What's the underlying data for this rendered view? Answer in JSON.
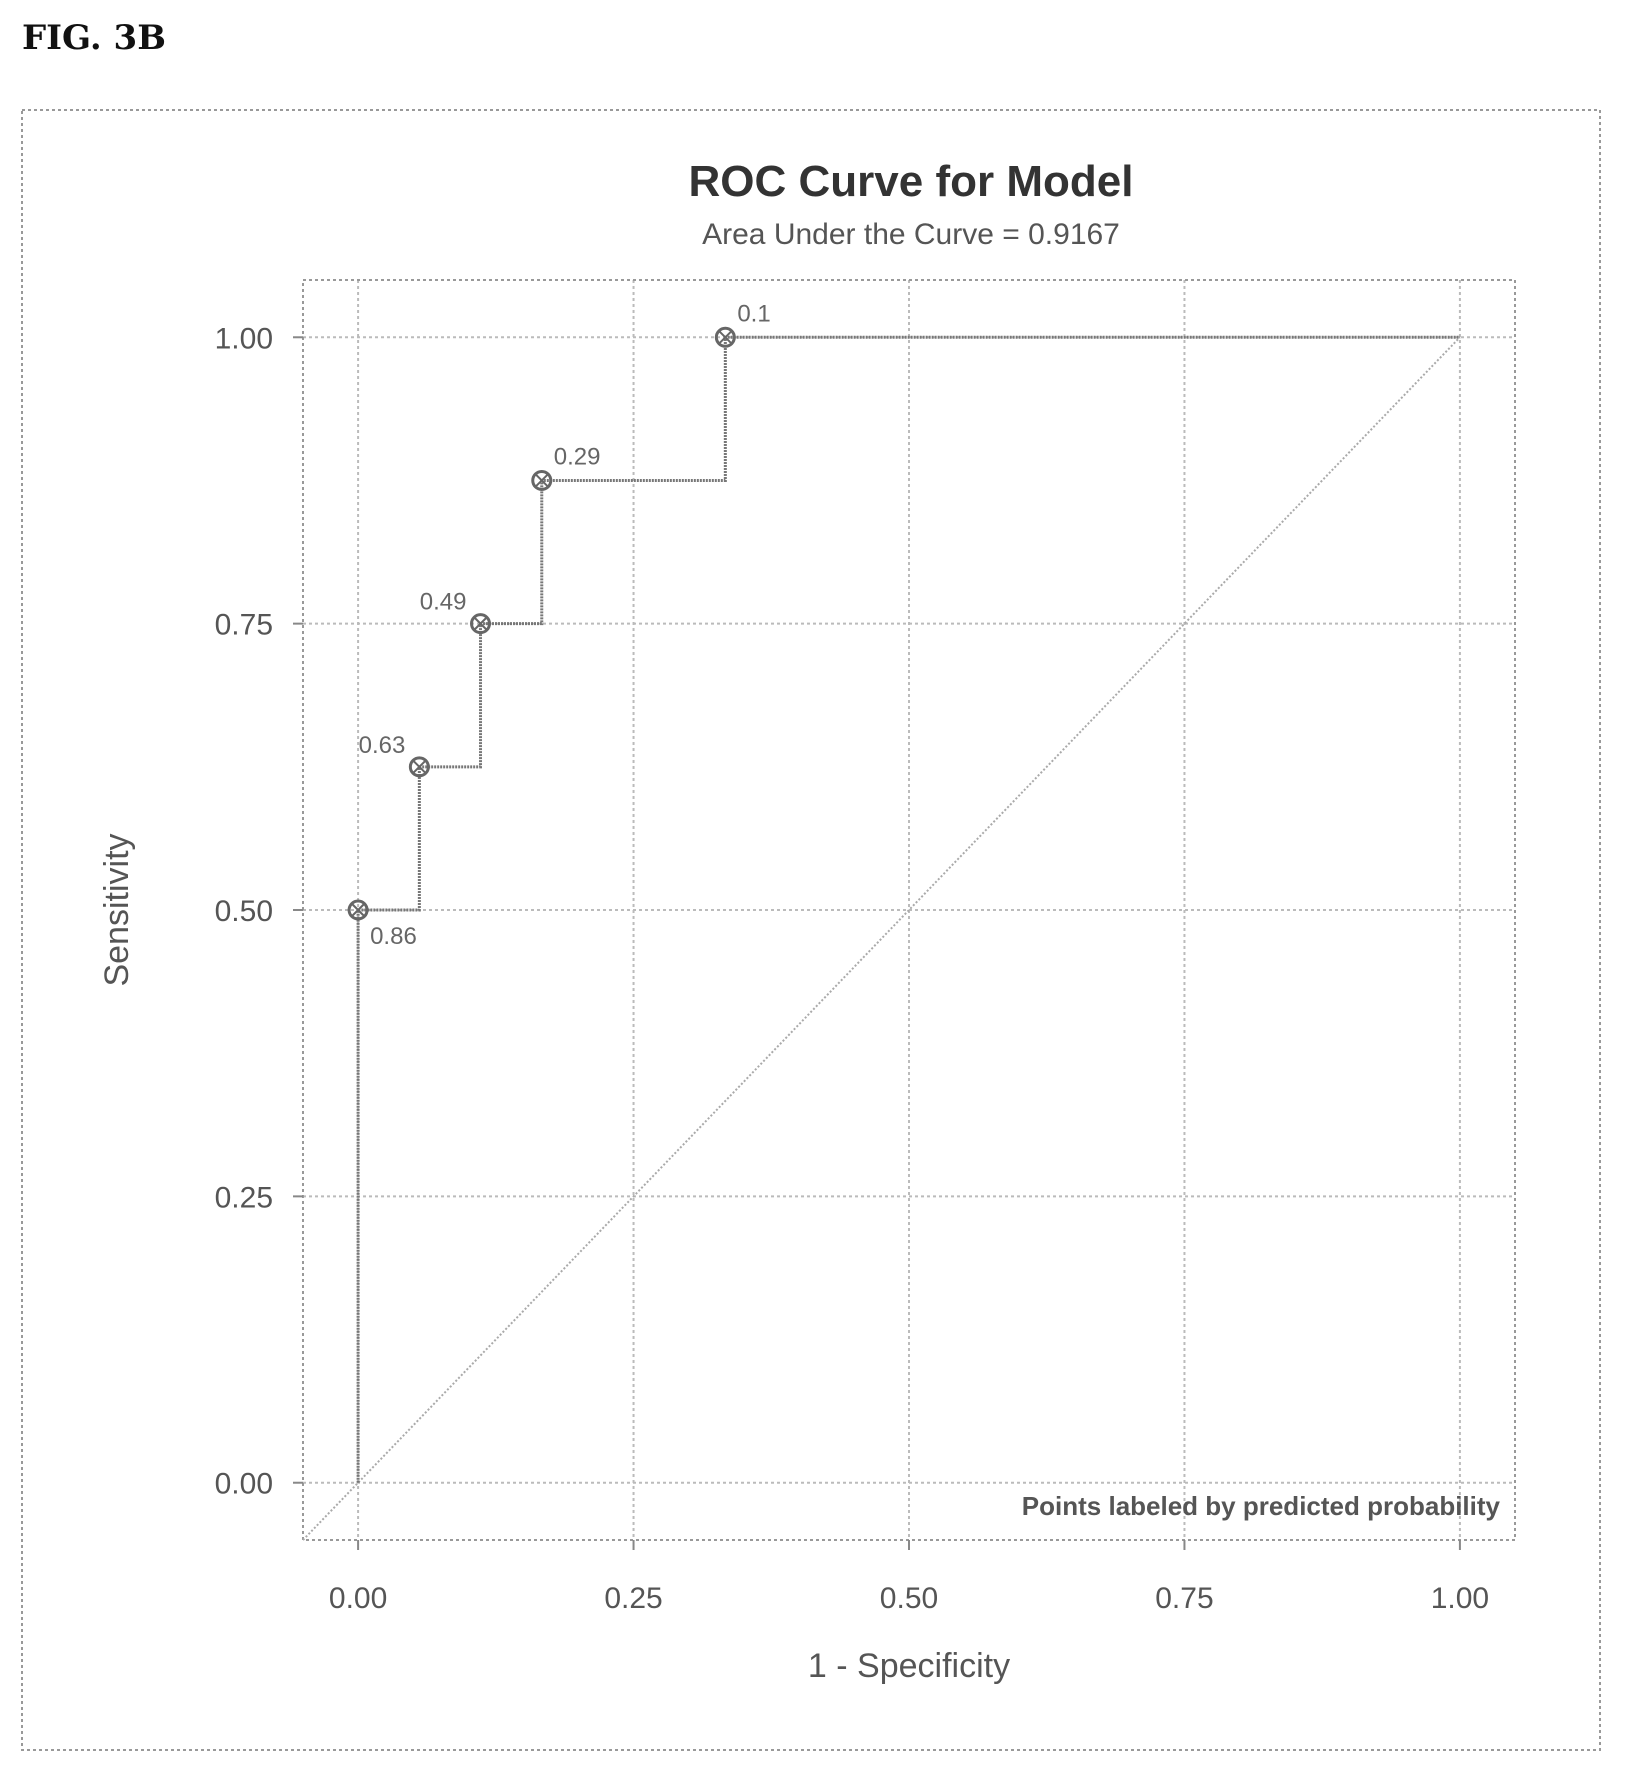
{
  "figure_label": "FIG. 3B",
  "chart_data": {
    "type": "line",
    "title": "ROC Curve for Model",
    "subtitle": "Area Under the Curve = 0.9167",
    "xlabel": "1 - Specificity",
    "ylabel": "Sensitivity",
    "xlim": [
      -0.05,
      1.05
    ],
    "ylim": [
      -0.05,
      1.05
    ],
    "xticks": [
      {
        "value": 0.0,
        "label": "0.00"
      },
      {
        "value": 0.25,
        "label": "0.25"
      },
      {
        "value": 0.5,
        "label": "0.50"
      },
      {
        "value": 0.75,
        "label": "0.75"
      },
      {
        "value": 1.0,
        "label": "1.00"
      }
    ],
    "yticks": [
      {
        "value": 0.0,
        "label": "0.00"
      },
      {
        "value": 0.25,
        "label": "0.25"
      },
      {
        "value": 0.5,
        "label": "0.50"
      },
      {
        "value": 0.75,
        "label": "0.75"
      },
      {
        "value": 1.0,
        "label": "1.00"
      }
    ],
    "grid": true,
    "curve": [
      [
        0.0,
        0.0
      ],
      [
        0.0,
        0.5
      ],
      [
        0.0556,
        0.5
      ],
      [
        0.0556,
        0.625
      ],
      [
        0.1111,
        0.625
      ],
      [
        0.1111,
        0.75
      ],
      [
        0.1667,
        0.75
      ],
      [
        0.1667,
        0.875
      ],
      [
        0.3333,
        0.875
      ],
      [
        0.3333,
        1.0
      ],
      [
        1.0,
        1.0
      ]
    ],
    "reference_line": [
      [
        0,
        0
      ],
      [
        1,
        1
      ]
    ],
    "labeled_points": [
      {
        "x": 0.0,
        "y": 0.5,
        "label": "0.86",
        "position": "below-right"
      },
      {
        "x": 0.0556,
        "y": 0.625,
        "label": "0.63",
        "position": "left"
      },
      {
        "x": 0.1111,
        "y": 0.75,
        "label": "0.49",
        "position": "left"
      },
      {
        "x": 0.1667,
        "y": 0.875,
        "label": "0.29",
        "position": "above-right"
      },
      {
        "x": 0.3333,
        "y": 1.0,
        "label": "0.1",
        "position": "above-right"
      }
    ],
    "note": "Points labeled by predicted probability",
    "note_placement": "bottom-right"
  }
}
